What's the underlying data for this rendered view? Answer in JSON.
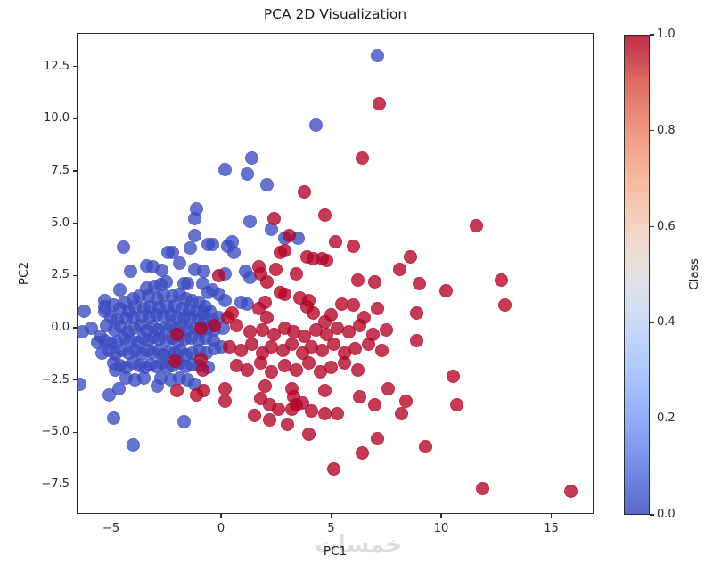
{
  "watermark": "خمسات",
  "chart_data": {
    "type": "scatter",
    "title": "PCA 2D Visualization",
    "xlabel": "PC1",
    "ylabel": "PC2",
    "xlim": [
      -6.56,
      16.92
    ],
    "ylim": [
      -8.9,
      14.1
    ],
    "xticks": [
      -5,
      0,
      5,
      10,
      15
    ],
    "xtick_labels": [
      "−5",
      "0",
      "5",
      "10",
      "15"
    ],
    "yticks": [
      12.5,
      10.0,
      7.5,
      5.0,
      2.5,
      0.0,
      -2.5,
      -5.0,
      -7.5
    ],
    "ytick_labels": [
      "12.5",
      "10.0",
      "7.5",
      "5.0",
      "2.5",
      "0.0",
      "−2.5",
      "−5.0",
      "−7.5"
    ],
    "grid": false,
    "legend": "none",
    "marker_alpha": 0.78,
    "colorbar": {
      "label": "Class",
      "ticks": [
        1.0,
        0.8,
        0.6,
        0.4,
        0.2,
        0.0
      ],
      "tick_labels": [
        "1.0",
        "0.8",
        "0.6",
        "0.4",
        "0.2",
        "0.0"
      ],
      "cmap": "coolwarm",
      "stops_low_to_high": [
        "#3b4cc0",
        "#5977e3",
        "#7b9ff9",
        "#9ebeff",
        "#c0d4f5",
        "#dddddd",
        "#f2cbb7",
        "#f7ac8e",
        "#ee8468",
        "#d65244",
        "#b40426"
      ]
    },
    "classes": [
      {
        "value": 0,
        "color": "#3b4cc0"
      },
      {
        "value": 1,
        "color": "#b40426"
      }
    ],
    "class0_points": [
      [
        7.1,
        13.0
      ],
      [
        4.3,
        9.7
      ],
      [
        1.4,
        8.1
      ],
      [
        1.2,
        7.35
      ],
      [
        0.2,
        7.55
      ],
      [
        2.1,
        6.85
      ],
      [
        -1.1,
        5.7
      ],
      [
        -1.2,
        5.2
      ],
      [
        1.3,
        5.1
      ],
      [
        -1.2,
        4.4
      ],
      [
        -0.6,
        4.0
      ],
      [
        -0.4,
        4.0
      ],
      [
        -4.45,
        3.85
      ],
      [
        -1.4,
        3.8
      ],
      [
        0.5,
        4.1
      ],
      [
        0.3,
        3.9
      ],
      [
        0.6,
        3.6
      ],
      [
        2.3,
        4.7
      ],
      [
        3.5,
        4.3
      ],
      [
        2.9,
        4.3
      ],
      [
        -2.4,
        3.6
      ],
      [
        -2.2,
        3.6
      ],
      [
        -1.9,
        3.1
      ],
      [
        -3.4,
        2.95
      ],
      [
        -3.1,
        2.9
      ],
      [
        -2.7,
        2.75
      ],
      [
        -4.1,
        2.7
      ],
      [
        -1.2,
        2.8
      ],
      [
        -0.8,
        2.7
      ],
      [
        1.1,
        2.7
      ],
      [
        1.3,
        2.4
      ],
      [
        0.2,
        2.6
      ],
      [
        -5.3,
        1.3
      ],
      [
        -5.3,
        1.0
      ],
      [
        -4.6,
        1.8
      ],
      [
        -3.4,
        1.9
      ],
      [
        -3.0,
        2.0
      ],
      [
        -2.75,
        2.05
      ],
      [
        -2.5,
        2.2
      ],
      [
        -1.7,
        2.1
      ],
      [
        -1.5,
        2.1
      ],
      [
        -0.85,
        2.1
      ],
      [
        -0.6,
        1.7
      ],
      [
        -0.4,
        1.8
      ],
      [
        -0.1,
        1.6
      ],
      [
        0.9,
        1.2
      ],
      [
        1.2,
        1.15
      ],
      [
        0.2,
        1.3
      ],
      [
        -6.2,
        0.8
      ],
      [
        -5.3,
        0.8
      ],
      [
        -4.9,
        1.1
      ],
      [
        -4.4,
        1.2
      ],
      [
        -4.0,
        1.4
      ],
      [
        -3.7,
        1.5
      ],
      [
        -3.3,
        1.5
      ],
      [
        -2.9,
        1.4
      ],
      [
        -2.6,
        1.55
      ],
      [
        -2.2,
        1.5
      ],
      [
        -1.9,
        1.6
      ],
      [
        -1.6,
        1.4
      ],
      [
        -1.3,
        1.3
      ],
      [
        -1.0,
        1.2
      ],
      [
        -0.7,
        1.0
      ],
      [
        -4.6,
        0.9
      ],
      [
        -4.2,
        0.8
      ],
      [
        -3.9,
        1.0
      ],
      [
        -3.5,
        0.9
      ],
      [
        -3.2,
        1.0
      ],
      [
        -2.8,
        0.95
      ],
      [
        -2.45,
        1.0
      ],
      [
        -2.1,
        1.05
      ],
      [
        -1.75,
        0.9
      ],
      [
        -1.45,
        0.85
      ],
      [
        -1.1,
        0.8
      ],
      [
        -0.8,
        0.7
      ],
      [
        -0.5,
        0.8
      ],
      [
        -5.0,
        0.5
      ],
      [
        -4.7,
        0.4
      ],
      [
        -4.3,
        0.45
      ],
      [
        -4.0,
        0.5
      ],
      [
        -3.6,
        0.55
      ],
      [
        -3.25,
        0.5
      ],
      [
        -2.95,
        0.6
      ],
      [
        -2.6,
        0.55
      ],
      [
        -2.3,
        0.6
      ],
      [
        -2.0,
        0.5
      ],
      [
        -1.7,
        0.45
      ],
      [
        -1.4,
        0.5
      ],
      [
        -1.05,
        0.4
      ],
      [
        -0.75,
        0.35
      ],
      [
        -0.4,
        0.4
      ],
      [
        -0.1,
        0.5
      ],
      [
        -6.3,
        -0.2
      ],
      [
        -5.9,
        0.0
      ],
      [
        -5.5,
        -0.4
      ],
      [
        -5.2,
        0.1
      ],
      [
        -4.85,
        -0.1
      ],
      [
        -4.55,
        0.05
      ],
      [
        -4.25,
        -0.2
      ],
      [
        -3.95,
        0.0
      ],
      [
        -3.65,
        0.1
      ],
      [
        -3.4,
        -0.15
      ],
      [
        -3.1,
        0.05
      ],
      [
        -2.85,
        -0.1
      ],
      [
        -2.55,
        0.0
      ],
      [
        -2.3,
        0.1
      ],
      [
        -2.05,
        -0.05
      ],
      [
        -1.8,
        0.05
      ],
      [
        -1.5,
        -0.1
      ],
      [
        -1.2,
        0.0
      ],
      [
        -0.9,
        -0.15
      ],
      [
        -0.6,
        0.0
      ],
      [
        -0.3,
        -0.1
      ],
      [
        0.1,
        0.0
      ],
      [
        -5.6,
        -0.7
      ],
      [
        -5.3,
        -0.6
      ],
      [
        -5.0,
        -0.75
      ],
      [
        -4.7,
        -0.65
      ],
      [
        -4.4,
        -0.5
      ],
      [
        -4.1,
        -0.6
      ],
      [
        -3.8,
        -0.7
      ],
      [
        -3.55,
        -0.5
      ],
      [
        -3.3,
        -0.6
      ],
      [
        -3.05,
        -0.45
      ],
      [
        -2.8,
        -0.55
      ],
      [
        -2.5,
        -0.6
      ],
      [
        -2.2,
        -0.5
      ],
      [
        -1.95,
        -0.65
      ],
      [
        -1.65,
        -0.55
      ],
      [
        -1.35,
        -0.5
      ],
      [
        -1.05,
        -0.6
      ],
      [
        -0.7,
        -0.5
      ],
      [
        -0.35,
        -0.6
      ],
      [
        -5.4,
        -1.2
      ],
      [
        -5.1,
        -1.1
      ],
      [
        -4.8,
        -1.25
      ],
      [
        -4.5,
        -1.1
      ],
      [
        -4.2,
        -1.2
      ],
      [
        -3.9,
        -1.1
      ],
      [
        -3.6,
        -1.25
      ],
      [
        -3.35,
        -1.1
      ],
      [
        -3.1,
        -1.2
      ],
      [
        -2.85,
        -1.1
      ],
      [
        -2.6,
        -1.3
      ],
      [
        -2.35,
        -1.15
      ],
      [
        -2.1,
        -1.2
      ],
      [
        -1.85,
        -1.1
      ],
      [
        -1.6,
        -1.3
      ],
      [
        -1.3,
        -1.2
      ],
      [
        -1.0,
        -1.1
      ],
      [
        -0.65,
        -1.2
      ],
      [
        -0.3,
        -1.0
      ],
      [
        0.0,
        -0.9
      ],
      [
        -4.9,
        -1.7
      ],
      [
        -4.6,
        -1.8
      ],
      [
        -4.3,
        -1.9
      ],
      [
        -4.0,
        -1.7
      ],
      [
        -3.7,
        -1.8
      ],
      [
        -3.45,
        -1.9
      ],
      [
        -3.2,
        -1.75
      ],
      [
        -2.95,
        -1.85
      ],
      [
        -2.7,
        -1.7
      ],
      [
        -2.45,
        -1.9
      ],
      [
        -2.2,
        -1.8
      ],
      [
        -1.9,
        -1.7
      ],
      [
        -1.6,
        -1.85
      ],
      [
        -1.3,
        -1.75
      ],
      [
        -1.0,
        -1.8
      ],
      [
        -4.8,
        -2.0
      ],
      [
        -0.6,
        -1.9
      ],
      [
        -6.4,
        -2.7
      ],
      [
        -5.1,
        -3.2
      ],
      [
        -4.65,
        -2.9
      ],
      [
        -3.5,
        -2.4
      ],
      [
        -2.9,
        -2.8
      ],
      [
        -2.75,
        -2.4
      ],
      [
        -2.3,
        -2.5
      ],
      [
        -1.9,
        -2.4
      ],
      [
        -1.5,
        -2.5
      ],
      [
        -3.9,
        -2.5
      ],
      [
        -4.3,
        -2.4
      ],
      [
        -1.2,
        -2.7
      ],
      [
        -4.9,
        -4.3
      ],
      [
        -4.0,
        -5.6
      ],
      [
        -1.7,
        -4.5
      ]
    ],
    "class1_points": [
      [
        7.2,
        10.7
      ],
      [
        6.4,
        8.1
      ],
      [
        3.8,
        6.5
      ],
      [
        4.7,
        5.4
      ],
      [
        2.4,
        5.2
      ],
      [
        11.6,
        4.9
      ],
      [
        5.2,
        4.1
      ],
      [
        6.0,
        3.9
      ],
      [
        3.1,
        4.4
      ],
      [
        2.9,
        3.7
      ],
      [
        2.7,
        3.6
      ],
      [
        3.9,
        3.4
      ],
      [
        4.2,
        3.3
      ],
      [
        4.6,
        3.3
      ],
      [
        4.8,
        3.2
      ],
      [
        8.6,
        3.4
      ],
      [
        8.1,
        2.8
      ],
      [
        12.75,
        2.3
      ],
      [
        9.0,
        2.1
      ],
      [
        10.2,
        1.75
      ],
      [
        6.2,
        2.3
      ],
      [
        7.0,
        2.2
      ],
      [
        1.7,
        2.9
      ],
      [
        1.8,
        2.6
      ],
      [
        2.5,
        2.8
      ],
      [
        3.4,
        2.6
      ],
      [
        2.1,
        2.2
      ],
      [
        -0.1,
        2.5
      ],
      [
        2.7,
        1.7
      ],
      [
        2.9,
        1.6
      ],
      [
        2.0,
        1.2
      ],
      [
        1.7,
        0.9
      ],
      [
        0.5,
        0.7
      ],
      [
        0.3,
        0.5
      ],
      [
        2.1,
        0.5
      ],
      [
        3.6,
        1.45
      ],
      [
        4.0,
        1.3
      ],
      [
        3.9,
        1.0
      ],
      [
        4.2,
        0.7
      ],
      [
        5.5,
        1.15
      ],
      [
        6.0,
        1.1
      ],
      [
        7.1,
        0.9
      ],
      [
        4.7,
        0.3
      ],
      [
        12.9,
        1.1
      ],
      [
        8.9,
        0.7
      ],
      [
        5.0,
        0.6
      ],
      [
        6.5,
        0.5
      ],
      [
        0.7,
        0.1
      ],
      [
        1.3,
        -0.2
      ],
      [
        1.9,
        -0.1
      ],
      [
        2.4,
        -0.3
      ],
      [
        2.9,
        0.0
      ],
      [
        3.3,
        -0.2
      ],
      [
        3.8,
        -0.4
      ],
      [
        4.3,
        -0.1
      ],
      [
        4.8,
        -0.3
      ],
      [
        5.3,
        0.0
      ],
      [
        5.8,
        -0.2
      ],
      [
        6.3,
        0.1
      ],
      [
        6.9,
        -0.3
      ],
      [
        7.5,
        -0.1
      ],
      [
        8.9,
        -0.6
      ],
      [
        -0.9,
        0.0
      ],
      [
        -0.3,
        0.1
      ],
      [
        -2.0,
        -0.3
      ],
      [
        0.4,
        -0.9
      ],
      [
        0.9,
        -1.1
      ],
      [
        1.4,
        -0.8
      ],
      [
        1.9,
        -1.2
      ],
      [
        2.3,
        -0.9
      ],
      [
        2.8,
        -1.1
      ],
      [
        3.2,
        -0.8
      ],
      [
        3.7,
        -1.2
      ],
      [
        4.1,
        -0.9
      ],
      [
        4.6,
        -1.1
      ],
      [
        5.1,
        -0.8
      ],
      [
        5.6,
        -1.2
      ],
      [
        6.1,
        -1.0
      ],
      [
        6.7,
        -0.8
      ],
      [
        7.3,
        -1.1
      ],
      [
        -0.9,
        -1.5
      ],
      [
        -2.1,
        -1.6
      ],
      [
        0.7,
        -1.8
      ],
      [
        1.2,
        -2.0
      ],
      [
        1.8,
        -1.7
      ],
      [
        2.3,
        -2.1
      ],
      [
        2.9,
        -1.8
      ],
      [
        3.4,
        -2.0
      ],
      [
        4.0,
        -1.7
      ],
      [
        4.5,
        -2.1
      ],
      [
        5.0,
        -1.9
      ],
      [
        5.6,
        -1.7
      ],
      [
        6.2,
        -2.0
      ],
      [
        10.55,
        -2.3
      ],
      [
        -0.85,
        -2.0
      ],
      [
        0.2,
        -2.9
      ],
      [
        0.2,
        -3.5
      ],
      [
        2.0,
        -2.8
      ],
      [
        1.8,
        -3.4
      ],
      [
        2.2,
        -3.7
      ],
      [
        2.6,
        -3.9
      ],
      [
        3.2,
        -2.9
      ],
      [
        3.3,
        -3.3
      ],
      [
        3.2,
        -3.9
      ],
      [
        3.4,
        -3.7
      ],
      [
        3.7,
        -3.6
      ],
      [
        4.7,
        -3.0
      ],
      [
        4.1,
        -4.0
      ],
      [
        4.7,
        -4.1
      ],
      [
        5.3,
        -4.1
      ],
      [
        6.3,
        -3.3
      ],
      [
        7.0,
        -3.7
      ],
      [
        7.6,
        -2.9
      ],
      [
        -2.0,
        -3.0
      ],
      [
        -1.1,
        -3.2
      ],
      [
        -0.8,
        -3.0
      ],
      [
        8.4,
        -3.5
      ],
      [
        8.2,
        -4.1
      ],
      [
        10.7,
        -3.7
      ],
      [
        4.0,
        -5.1
      ],
      [
        7.1,
        -5.3
      ],
      [
        6.4,
        -6.0
      ],
      [
        5.1,
        -6.75
      ],
      [
        9.3,
        -5.7
      ],
      [
        11.9,
        -7.7
      ],
      [
        15.9,
        -7.8
      ],
      [
        3.0,
        -4.6
      ],
      [
        2.2,
        -4.4
      ],
      [
        1.5,
        -4.2
      ]
    ]
  }
}
